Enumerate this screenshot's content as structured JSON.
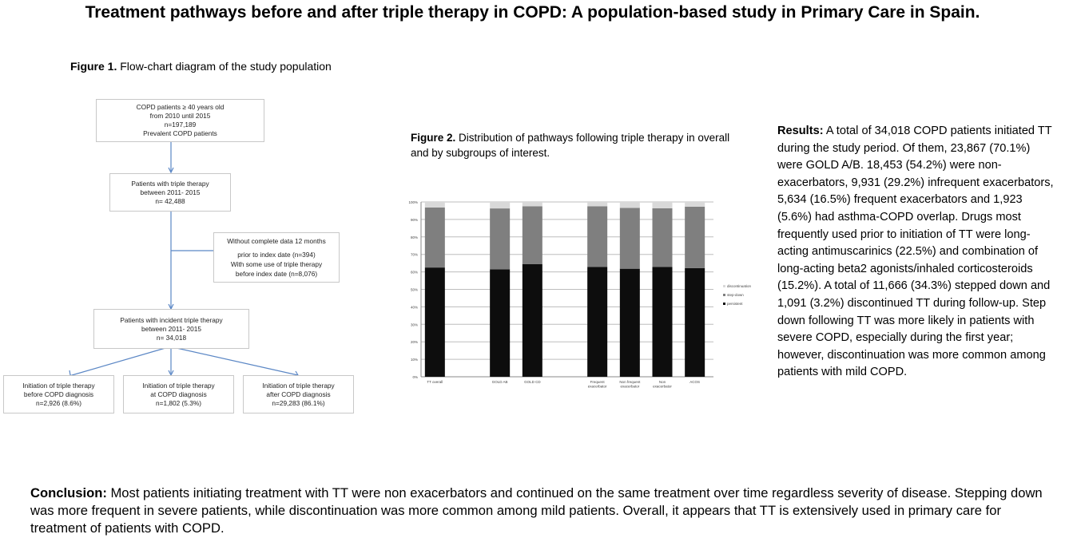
{
  "title": "Treatment pathways before and after triple therapy in COPD: A population-based study in Primary Care in Spain.",
  "figure1": {
    "label": "Figure 1.",
    "caption": " Flow-chart diagram of the study population",
    "boxes": {
      "prevalent": [
        "COPD patients ≥ 40 years old",
        "from 2010 until 2015",
        "n=197,189",
        "Prevalent COPD patients"
      ],
      "triple": [
        "Patients with triple therapy",
        "between 2011- 2015",
        "n= 42,488"
      ],
      "excluded": [
        "Without complete data 12 months",
        "prior to index date  (n=394)",
        "With some use of triple therapy",
        "before index date (n=8,076)"
      ],
      "incident": [
        "Patients with incident triple therapy",
        "between 2011- 2015",
        "n= 34,018"
      ],
      "before": [
        "Initiation of triple therapy",
        "before COPD diagnosis",
        "n=2,926 (8.6%)"
      ],
      "at": [
        "Initiation of triple therapy",
        "at COPD diagnosis",
        "n=1,802 (5.3%)"
      ],
      "after": [
        "Initiation of triple therapy",
        "after COPD diagnosis",
        "n=29,283 (86.1%)"
      ]
    },
    "line_color": "#5b87c5"
  },
  "figure2": {
    "label": "Figure 2.",
    "caption": "  Distribution of pathways following triple therapy in overall and by subgroups of interest."
  },
  "chart_data": {
    "type": "bar",
    "stacked": true,
    "categories": [
      "TT overall",
      "",
      "GOLD AB",
      "GOLD CD",
      "",
      "Frequent exacerbator",
      "Non frequent exacerbator",
      "Non exacerbator",
      "ACOS"
    ],
    "series": [
      {
        "name": "persistent",
        "color": "#0d0d0d",
        "values": [
          62.5,
          null,
          61.5,
          64.5,
          null,
          62.8,
          61.8,
          62.8,
          62.2
        ]
      },
      {
        "name": "step-down",
        "color": "#7f7f7f",
        "values": [
          34.3,
          null,
          34.8,
          33.0,
          null,
          34.7,
          34.8,
          33.6,
          35.1
        ]
      },
      {
        "name": "discontinuation",
        "color": "#d9d9d9",
        "values": [
          3.2,
          null,
          3.7,
          2.5,
          null,
          2.5,
          3.4,
          3.6,
          2.7
        ]
      }
    ],
    "yticks": [
      "0%",
      "10%",
      "20%",
      "30%",
      "40%",
      "50%",
      "60%",
      "70%",
      "80%",
      "90%",
      "100%"
    ],
    "ylim": [
      0,
      100
    ],
    "grid": true,
    "legend": "right"
  },
  "results": {
    "label": "Results:",
    "text": " A total of 34,018 COPD patients initiated TT during the study period. Of them, 23,867 (70.1%) were GOLD A/B.  18,453 (54.2%) were non-exacerbators, 9,931 (29.2%) infrequent exacerbators, 5,634 (16.5%) frequent exacerbators and 1,923 (5.6%) had asthma-COPD overlap. Drugs most frequently used prior to initiation of TT were long-acting antimuscarinics (22.5%) and combination of long-acting beta2 agonists/inhaled corticosteroids (15.2%). A total of 11,666 (34.3%) stepped down and 1,091 (3.2%) discontinued TT during follow-up. Step down following TT was more likely in patients with severe COPD, especially during the first year; however, discontinuation was more common among patients with mild COPD."
  },
  "conclusion": {
    "label": "Conclusion:",
    "text": " Most patients initiating treatment with TT were non exacerbators and continued on the same treatment over time regardless severity of disease. Stepping down was more frequent in severe patients, while discontinuation was more common among mild patients. Overall, it appears that TT is extensively used in primary care for treatment of patients with COPD."
  }
}
